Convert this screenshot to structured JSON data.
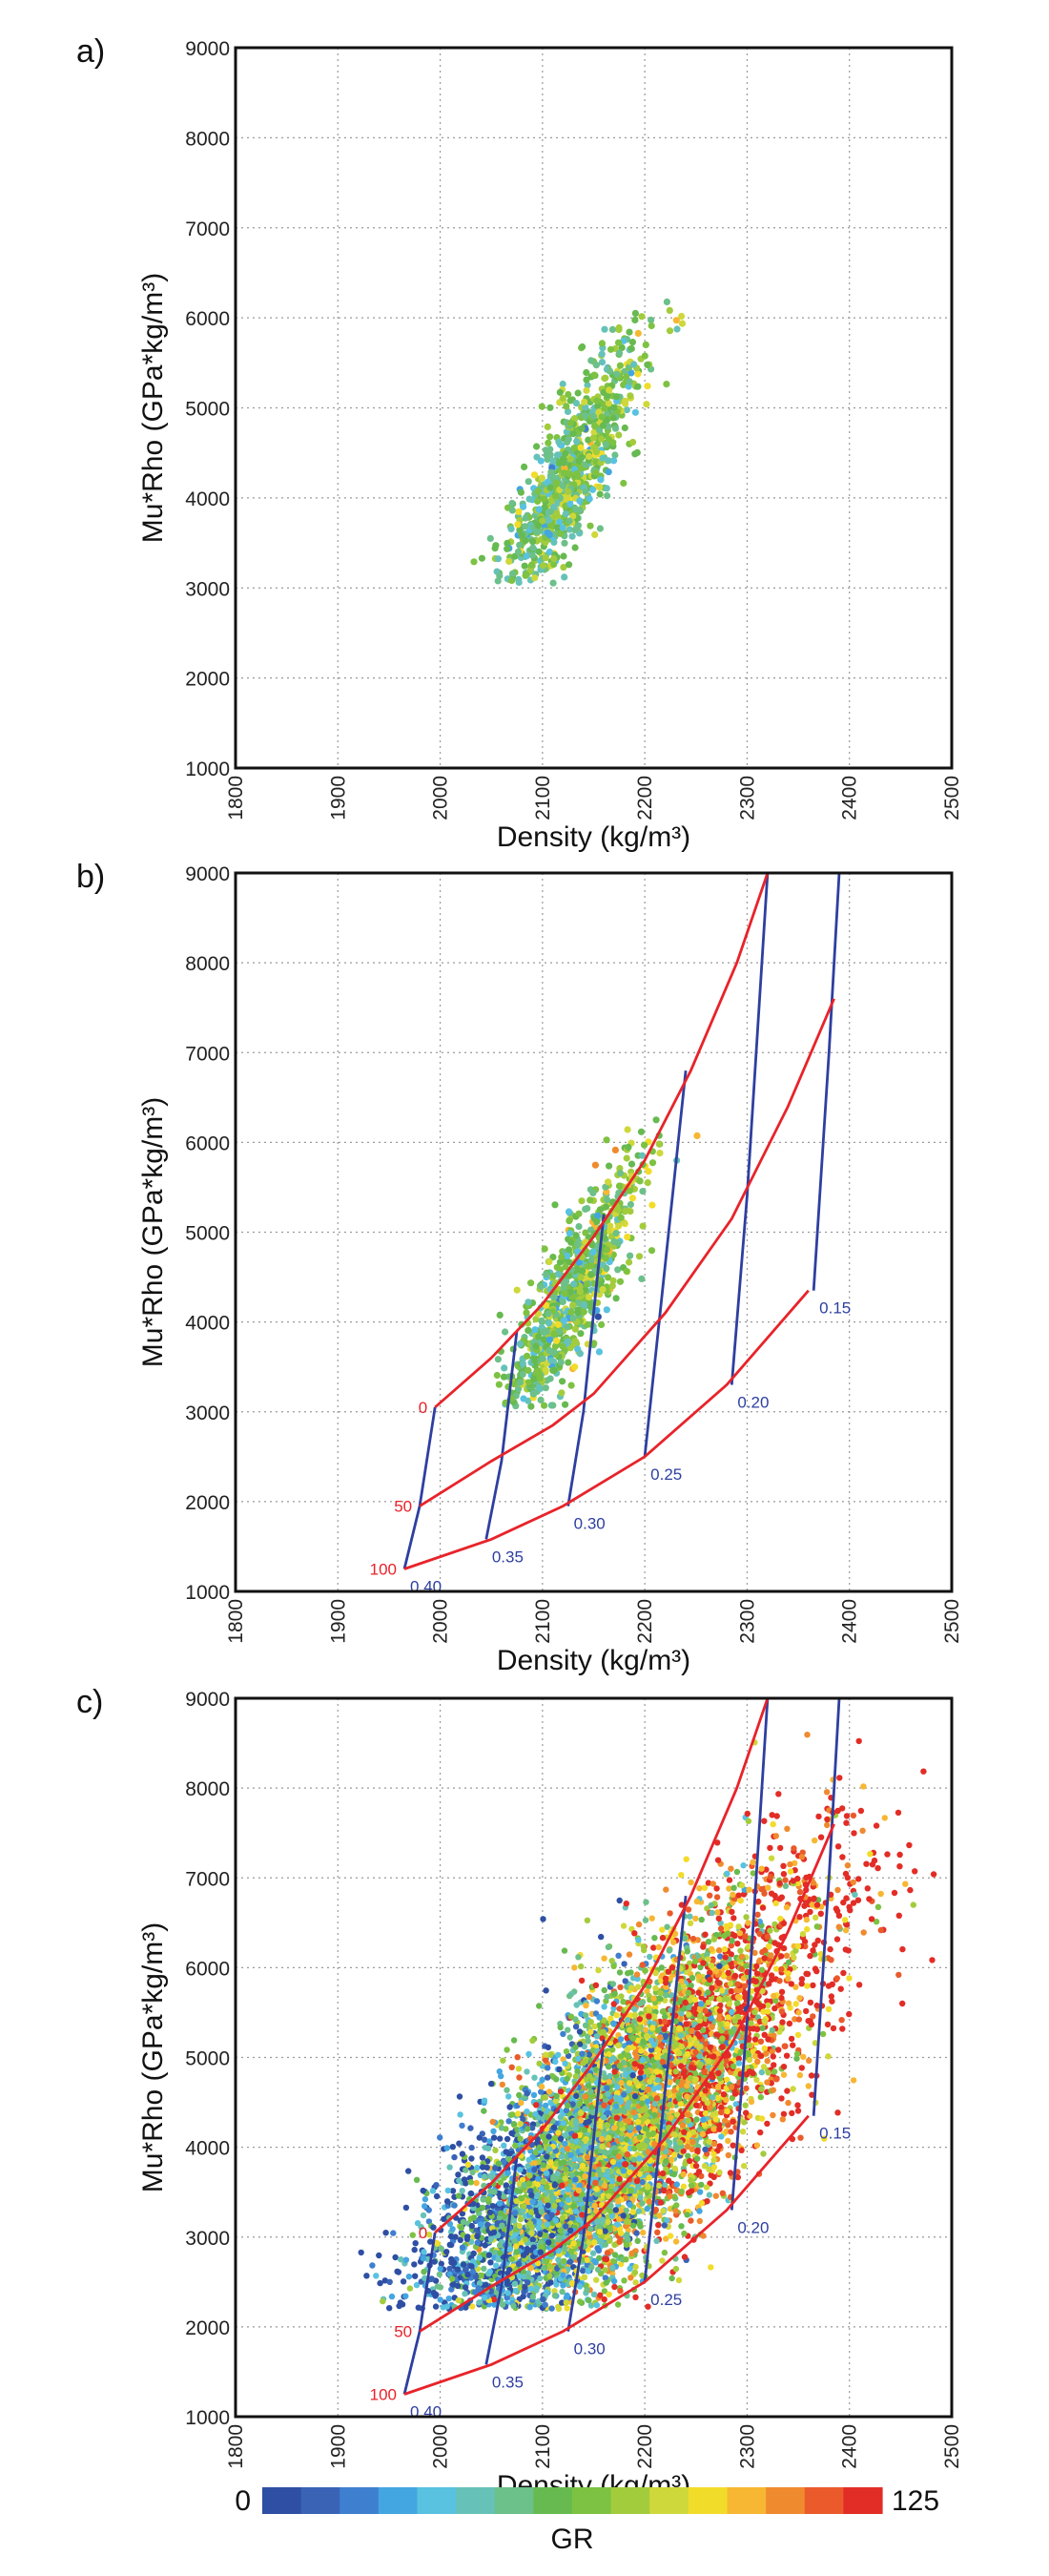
{
  "panel_labels": [
    "a)",
    "b)",
    "c)"
  ],
  "colorbar": {
    "title": "GR",
    "min_label": "0",
    "max_label": "125",
    "range": [
      0,
      125
    ],
    "colors": [
      "#2e4fa3",
      "#3a63b6",
      "#3f7fcf",
      "#44a6e0",
      "#58c2e0",
      "#66c2b8",
      "#6cc08a",
      "#67ba4f",
      "#7dc242",
      "#a3cc3d",
      "#cfd83a",
      "#f2dc2a",
      "#f7b733",
      "#f08a2e",
      "#ea5a2b",
      "#e22d26"
    ]
  },
  "chart_data": [
    {
      "type": "scatter",
      "panel": "a)",
      "xlabel": "Density (kg/m³)",
      "ylabel": "Mu*Rho (GPa*kg/m³)",
      "xlim": [
        1800,
        2500
      ],
      "ylim": [
        1000,
        9000
      ],
      "xticks": [
        "1800",
        "1900",
        "2000",
        "2100",
        "2200",
        "2300",
        "2400",
        "2500"
      ],
      "yticks": [
        "1000",
        "2000",
        "3000",
        "4000",
        "5000",
        "6000",
        "7000",
        "8000",
        "9000"
      ],
      "grid": true,
      "color_by": "GR",
      "cloud": {
        "density_center": 2125,
        "density_spread": 38,
        "murho_center": 4200,
        "murho_spread": 430,
        "slope": 19,
        "n_points": 900,
        "density_range": [
          2015,
          2320
        ],
        "murho_range": [
          3050,
          6250
        ],
        "gr_center": 60,
        "gr_spread": 14
      }
    },
    {
      "type": "scatter",
      "panel": "b)",
      "xlabel": "Density (kg/m³)",
      "ylabel": "Mu*Rho (GPa*kg/m³)",
      "xlim": [
        1800,
        2500
      ],
      "ylim": [
        1000,
        9000
      ],
      "xticks": [
        "1800",
        "1900",
        "2000",
        "2100",
        "2200",
        "2300",
        "2400",
        "2500"
      ],
      "yticks": [
        "1000",
        "2000",
        "3000",
        "4000",
        "5000",
        "6000",
        "7000",
        "8000",
        "9000"
      ],
      "grid": true,
      "color_by": "GR",
      "cloud": {
        "density_center": 2125,
        "density_spread": 38,
        "murho_center": 4200,
        "murho_spread": 430,
        "slope": 19,
        "n_points": 900,
        "density_range": [
          2015,
          2320
        ],
        "murho_range": [
          3050,
          6250
        ],
        "gr_center": 60,
        "gr_spread": 14
      },
      "template": {
        "gr_lines": [
          {
            "label": "0",
            "color": "#e8232a",
            "points": [
              [
                1995,
                3050
              ],
              [
                2050,
                3600
              ],
              [
                2100,
                4200
              ],
              [
                2150,
                4950
              ],
              [
                2200,
                5800
              ],
              [
                2245,
                6800
              ],
              [
                2290,
                8000
              ],
              [
                2320,
                9000
              ]
            ]
          },
          {
            "label": "50",
            "color": "#e8232a",
            "points": [
              [
                1980,
                1950
              ],
              [
                2050,
                2450
              ],
              [
                2110,
                2850
              ],
              [
                2150,
                3200
              ],
              [
                2220,
                4100
              ],
              [
                2285,
                5150
              ],
              [
                2340,
                6400
              ],
              [
                2385,
                7600
              ]
            ]
          },
          {
            "label": "100",
            "color": "#e8232a",
            "points": [
              [
                1965,
                1250
              ],
              [
                2050,
                1580
              ],
              [
                2120,
                1950
              ],
              [
                2200,
                2500
              ],
              [
                2280,
                3300
              ],
              [
                2360,
                4350
              ]
            ]
          }
        ],
        "porosity_lines": [
          {
            "label": "0.40",
            "color": "#2e3fa0",
            "points": [
              [
                1965,
                1250
              ],
              [
                1980,
                1950
              ],
              [
                1995,
                3050
              ]
            ]
          },
          {
            "label": "0.35",
            "color": "#2e3fa0",
            "points": [
              [
                2045,
                1580
              ],
              [
                2060,
                2450
              ],
              [
                2075,
                3900
              ]
            ]
          },
          {
            "label": "0.30",
            "color": "#2e3fa0",
            "points": [
              [
                2125,
                1950
              ],
              [
                2140,
                3000
              ],
              [
                2160,
                5200
              ]
            ]
          },
          {
            "label": "0.25",
            "color": "#2e3fa0",
            "points": [
              [
                2200,
                2500
              ],
              [
                2215,
                4100
              ],
              [
                2240,
                6800
              ]
            ]
          },
          {
            "label": "0.20",
            "color": "#2e3fa0",
            "points": [
              [
                2285,
                3300
              ],
              [
                2300,
                5400
              ],
              [
                2320,
                9000
              ]
            ]
          },
          {
            "label": "0.15",
            "color": "#2e3fa0",
            "points": [
              [
                2365,
                4350
              ],
              [
                2380,
                7000
              ],
              [
                2390,
                9000
              ]
            ]
          }
        ]
      }
    },
    {
      "type": "scatter",
      "panel": "c)",
      "xlabel": "Density (kg/m³)",
      "ylabel": "Mu*Rho (GPa*kg/m³)",
      "xlim": [
        1800,
        2500
      ],
      "ylim": [
        1000,
        9000
      ],
      "xticks": [
        "1800",
        "1900",
        "2000",
        "2100",
        "2200",
        "2300",
        "2400",
        "2500"
      ],
      "yticks": [
        "1000",
        "2000",
        "3000",
        "4000",
        "5000",
        "6000",
        "7000",
        "8000",
        "9000"
      ],
      "grid": true,
      "color_by": "GR",
      "cloud": {
        "density_center": 2165,
        "density_spread": 95,
        "murho_center": 4050,
        "murho_spread": 820,
        "slope": 11,
        "n_points": 7000,
        "density_range": [
          1910,
          2500
        ],
        "murho_range": [
          2200,
          8700
        ],
        "gr_center": 65,
        "gr_spread": 32
      },
      "template": {
        "gr_lines": [
          {
            "label": "0",
            "color": "#e8232a",
            "points": [
              [
                1995,
                3050
              ],
              [
                2050,
                3600
              ],
              [
                2100,
                4200
              ],
              [
                2150,
                4950
              ],
              [
                2200,
                5800
              ],
              [
                2245,
                6800
              ],
              [
                2290,
                8000
              ],
              [
                2320,
                9000
              ]
            ]
          },
          {
            "label": "50",
            "color": "#e8232a",
            "points": [
              [
                1980,
                1950
              ],
              [
                2050,
                2450
              ],
              [
                2110,
                2850
              ],
              [
                2150,
                3200
              ],
              [
                2220,
                4100
              ],
              [
                2285,
                5150
              ],
              [
                2340,
                6400
              ],
              [
                2385,
                7600
              ]
            ]
          },
          {
            "label": "100",
            "color": "#e8232a",
            "points": [
              [
                1965,
                1250
              ],
              [
                2050,
                1580
              ],
              [
                2120,
                1950
              ],
              [
                2200,
                2500
              ],
              [
                2280,
                3300
              ],
              [
                2360,
                4350
              ]
            ]
          }
        ],
        "porosity_lines": [
          {
            "label": "0.40",
            "color": "#2e3fa0",
            "points": [
              [
                1965,
                1250
              ],
              [
                1980,
                1950
              ],
              [
                1995,
                3050
              ]
            ]
          },
          {
            "label": "0.35",
            "color": "#2e3fa0",
            "points": [
              [
                2045,
                1580
              ],
              [
                2060,
                2450
              ],
              [
                2075,
                3900
              ]
            ]
          },
          {
            "label": "0.30",
            "color": "#2e3fa0",
            "points": [
              [
                2125,
                1950
              ],
              [
                2140,
                3000
              ],
              [
                2160,
                5200
              ]
            ]
          },
          {
            "label": "0.25",
            "color": "#2e3fa0",
            "points": [
              [
                2200,
                2500
              ],
              [
                2215,
                4100
              ],
              [
                2240,
                6800
              ]
            ]
          },
          {
            "label": "0.20",
            "color": "#2e3fa0",
            "points": [
              [
                2285,
                3300
              ],
              [
                2300,
                5400
              ],
              [
                2320,
                9000
              ]
            ]
          },
          {
            "label": "0.15",
            "color": "#2e3fa0",
            "points": [
              [
                2365,
                4350
              ],
              [
                2380,
                7000
              ],
              [
                2390,
                9000
              ]
            ]
          }
        ]
      }
    }
  ]
}
